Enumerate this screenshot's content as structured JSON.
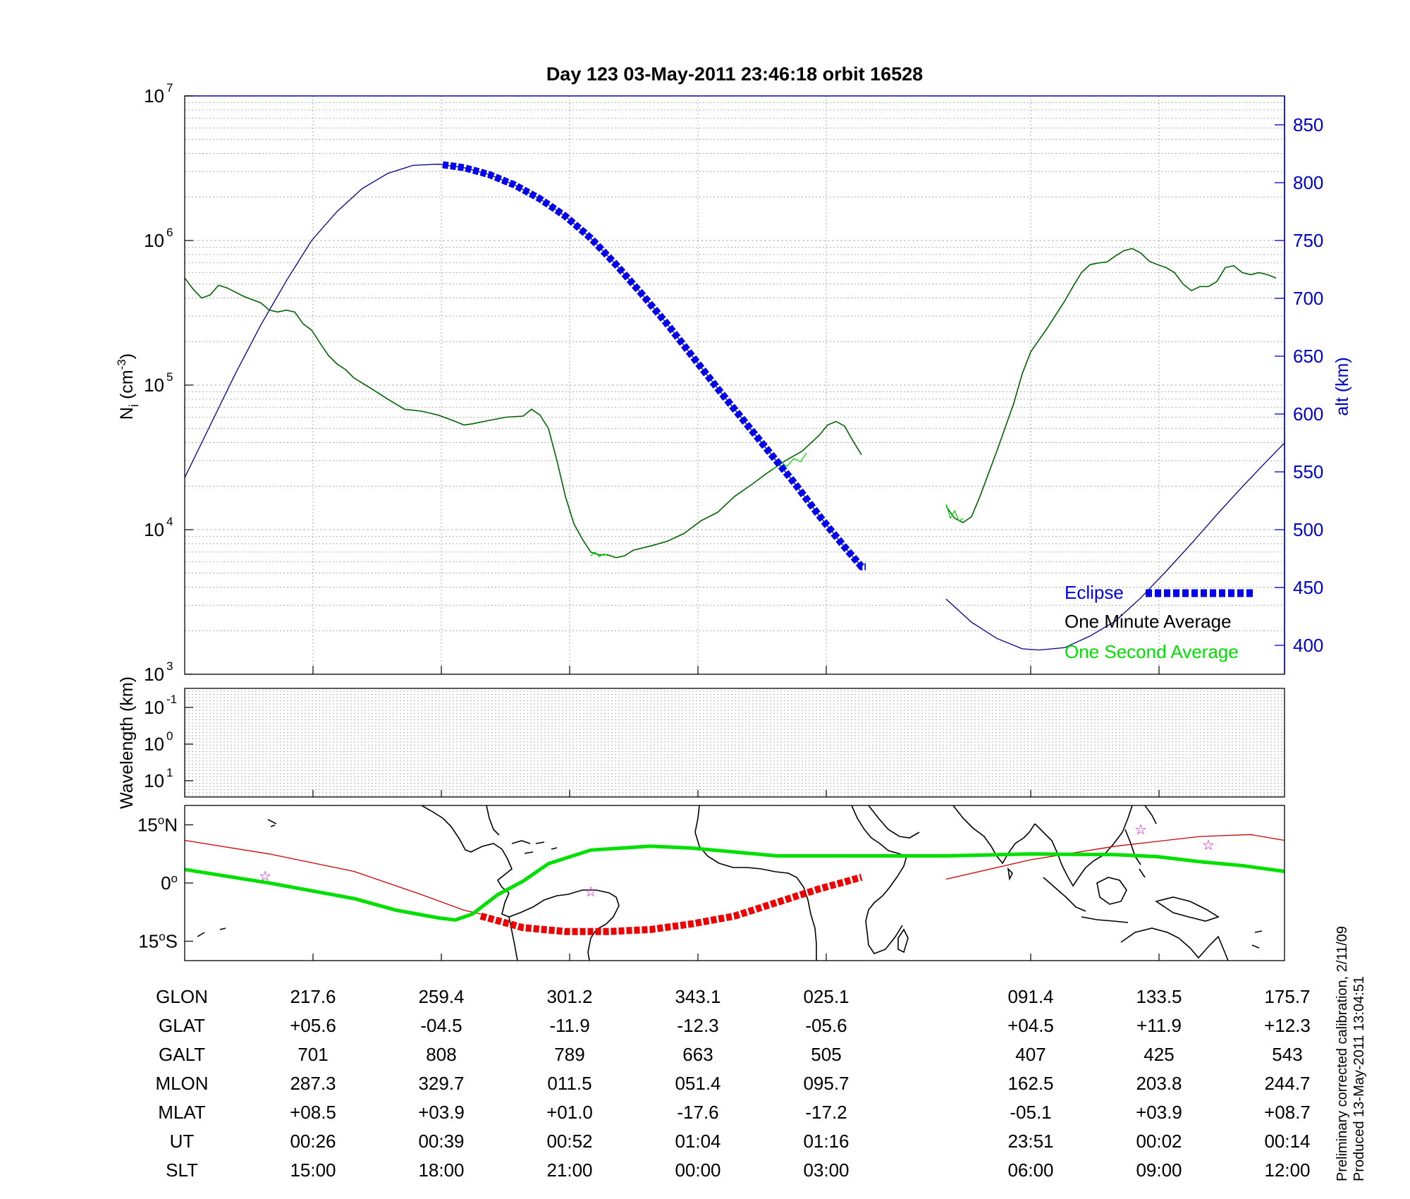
{
  "chart_data": [
    {
      "type": "line",
      "title": "Day 123  03-May-2011 23:46:18   orbit 16528",
      "ylabel": "N",
      "ylabel_sub": "i",
      "ylabel_units": "(cm",
      "ylabel_units_sup": "-3",
      "ylabel_units_close": ")",
      "y_scale": "log",
      "ylim": [
        1000,
        10000000
      ],
      "yticks": [
        {
          "base": "10",
          "exp": "3"
        },
        {
          "base": "10",
          "exp": "4"
        },
        {
          "base": "10",
          "exp": "5"
        },
        {
          "base": "10",
          "exp": "6"
        },
        {
          "base": "10",
          "exp": "7"
        }
      ],
      "y2label": "alt (km)",
      "y2lim": [
        375,
        875
      ],
      "y2ticks": [
        "400",
        "450",
        "500",
        "550",
        "600",
        "650",
        "700",
        "750",
        "800",
        "850"
      ],
      "grid": true,
      "legend_position": "bottom-right",
      "legend": {
        "eclipse": "Eclipse",
        "minute": "One Minute Average",
        "second": "One Second Average"
      },
      "colors": {
        "axes": "#000000",
        "altitude": "#00008b",
        "eclipse": "#0000ee",
        "minute": "#006400",
        "second": "#00e000",
        "grid": "#9a9a9a"
      },
      "series": [
        {
          "key": "ni_minute",
          "segments": [
            [
              [
                0,
                550000
              ],
              [
                10,
                460000
              ],
              [
                20,
                400000
              ],
              [
                30,
                420000
              ],
              [
                40,
                490000
              ],
              [
                50,
                470000
              ],
              [
                70,
                410000
              ],
              [
                90,
                370000
              ],
              [
                100,
                330000
              ],
              [
                110,
                320000
              ],
              [
                120,
                330000
              ],
              [
                130,
                320000
              ],
              [
                140,
                265000
              ],
              [
                150,
                240000
              ],
              [
                160,
                195000
              ],
              [
                170,
                160000
              ],
              [
                180,
                140000
              ],
              [
                190,
                128000
              ],
              [
                200,
                112000
              ],
              [
                220,
                95000
              ],
              [
                240,
                80000
              ],
              [
                260,
                68000
              ],
              [
                280,
                66000
              ],
              [
                300,
                62000
              ],
              [
                320,
                56000
              ],
              [
                330,
                53000
              ],
              [
                340,
                54000
              ],
              [
                360,
                57000
              ],
              [
                380,
                60000
              ],
              [
                400,
                61000
              ],
              [
                410,
                68000
              ],
              [
                420,
                62000
              ],
              [
                430,
                50000
              ],
              [
                440,
                30000
              ],
              [
                450,
                17000
              ],
              [
                460,
                11000
              ],
              [
                470,
                8600
              ],
              [
                480,
                7000
              ],
              [
                490,
                6700
              ],
              [
                500,
                6700
              ],
              [
                510,
                6400
              ],
              [
                520,
                6600
              ],
              [
                530,
                7200
              ],
              [
                550,
                7700
              ],
              [
                570,
                8300
              ],
              [
                590,
                9400
              ],
              [
                610,
                11500
              ],
              [
                630,
                13200
              ],
              [
                650,
                17000
              ],
              [
                670,
                20500
              ],
              [
                690,
                25000
              ],
              [
                710,
                30000
              ],
              [
                730,
                35000
              ],
              [
                750,
                45000
              ],
              [
                760,
                53000
              ],
              [
                770,
                56000
              ],
              [
                780,
                52000
              ],
              [
                790,
                41000
              ],
              [
                800,
                33000
              ]
            ],
            [
              [
                900,
                14500
              ],
              [
                910,
                12000
              ],
              [
                920,
                11200
              ],
              [
                930,
                12300
              ],
              [
                940,
                17000
              ],
              [
                960,
                35000
              ],
              [
                980,
                75000
              ],
              [
                990,
                120000
              ],
              [
                1000,
                170000
              ],
              [
                1020,
                250000
              ],
              [
                1040,
                380000
              ],
              [
                1050,
                480000
              ],
              [
                1060,
                600000
              ],
              [
                1070,
                680000
              ],
              [
                1080,
                700000
              ],
              [
                1090,
                710000
              ],
              [
                1100,
                780000
              ],
              [
                1110,
                850000
              ],
              [
                1120,
                880000
              ],
              [
                1130,
                820000
              ],
              [
                1140,
                720000
              ],
              [
                1150,
                680000
              ],
              [
                1160,
                650000
              ],
              [
                1170,
                600000
              ],
              [
                1180,
                500000
              ],
              [
                1190,
                450000
              ],
              [
                1200,
                480000
              ],
              [
                1210,
                480000
              ],
              [
                1220,
                520000
              ],
              [
                1230,
                650000
              ],
              [
                1240,
                670000
              ],
              [
                1250,
                600000
              ],
              [
                1260,
                580000
              ],
              [
                1270,
                600000
              ],
              [
                1280,
                580000
              ],
              [
                1290,
                550000
              ]
            ]
          ]
        },
        {
          "key": "ni_second",
          "segments": [
            [
              [
                480,
                6600
              ],
              [
                485,
                7000
              ],
              [
                490,
                6500
              ],
              [
                495,
                6800
              ],
              [
                500,
                6600
              ]
            ],
            [
              [
                695,
                26000
              ],
              [
                705,
                29000
              ],
              [
                712,
                27500
              ],
              [
                720,
                31000
              ],
              [
                728,
                29500
              ],
              [
                735,
                34000
              ]
            ],
            [
              [
                900,
                15000
              ],
              [
                905,
                12000
              ],
              [
                910,
                13500
              ],
              [
                915,
                11500
              ],
              [
                920,
                12000
              ]
            ]
          ]
        },
        {
          "key": "alt",
          "segments": [
            [
              [
                0,
                545
              ],
              [
                30,
                590
              ],
              [
                60,
                635
              ],
              [
                90,
                677
              ],
              [
                120,
                715
              ],
              [
                150,
                750
              ],
              [
                180,
                775
              ],
              [
                210,
                795
              ],
              [
                240,
                808
              ],
              [
                270,
                815
              ],
              [
                300,
                816
              ],
              [
                330,
                813
              ],
              [
                360,
                807
              ],
              [
                390,
                798
              ],
              [
                420,
                786
              ],
              [
                450,
                771
              ],
              [
                480,
                752
              ],
              [
                510,
                729
              ],
              [
                540,
                704
              ],
              [
                570,
                678
              ],
              [
                600,
                650
              ],
              [
                630,
                622
              ],
              [
                660,
                595
              ],
              [
                690,
                568
              ],
              [
                720,
                541
              ],
              [
                750,
                512
              ],
              [
                780,
                485
              ],
              [
                800,
                468
              ]
            ],
            [
              [
                900,
                440
              ],
              [
                930,
                420
              ],
              [
                960,
                406
              ],
              [
                990,
                397
              ],
              [
                1010,
                396
              ],
              [
                1040,
                398
              ],
              [
                1070,
                408
              ],
              [
                1100,
                421
              ],
              [
                1130,
                441
              ],
              [
                1160,
                464
              ],
              [
                1190,
                488
              ],
              [
                1220,
                513
              ],
              [
                1250,
                537
              ],
              [
                1280,
                560
              ],
              [
                1300,
                575
              ]
            ]
          ]
        },
        {
          "key": "eclipse",
          "x_range": [
            305,
            808
          ]
        }
      ]
    },
    {
      "type": "heatmap",
      "ylabel": "Wavelength (km)",
      "yticks": [
        {
          "base": "10",
          "exp": "-1"
        },
        {
          "base": "10",
          "exp": "0"
        },
        {
          "base": "10",
          "exp": "1"
        }
      ]
    },
    {
      "type": "line",
      "map": true,
      "y_ticks": [
        {
          "deg": "15",
          "sym": "o",
          "dir": "N"
        },
        {
          "deg": "0",
          "sym": "o",
          "dir": ""
        },
        {
          "deg": "15",
          "sym": "o",
          "dir": "S"
        }
      ],
      "ylim": [
        -20,
        20
      ],
      "colors": {
        "geographic_track": "#00e000",
        "magnetic_track": "#cc0000",
        "eclipse_track": "#ee0000",
        "stars": "#cc00cc",
        "coast": "#000000"
      },
      "star_marker": "☆",
      "series": [
        {
          "key": "geo_track",
          "points": [
            [
              0,
              3.5
            ],
            [
              100,
              0
            ],
            [
              200,
              -4
            ],
            [
              250,
              -7
            ],
            [
              300,
              -9
            ],
            [
              320,
              -9.5
            ],
            [
              340,
              -8
            ],
            [
              370,
              -3
            ],
            [
              400,
              0.5
            ],
            [
              430,
              5
            ],
            [
              480,
              8.5
            ],
            [
              550,
              9.5
            ],
            [
              600,
              9
            ],
            [
              650,
              8
            ],
            [
              700,
              7
            ],
            [
              800,
              7
            ],
            [
              900,
              7
            ],
            [
              1000,
              7.5
            ],
            [
              1100,
              7.3
            ],
            [
              1150,
              6.8
            ],
            [
              1200,
              5.5
            ],
            [
              1250,
              4.5
            ],
            [
              1300,
              3
            ]
          ]
        },
        {
          "key": "mag_track",
          "segments": [
            [
              [
                0,
                11
              ],
              [
                100,
                7.5
              ],
              [
                200,
                3
              ],
              [
                280,
                -3
              ],
              [
                330,
                -7
              ],
              [
                350,
                -8
              ]
            ],
            [
              [
                900,
                1
              ],
              [
                1000,
                6
              ],
              [
                1100,
                9.5
              ],
              [
                1200,
                12
              ],
              [
                1260,
                12.5
              ],
              [
                1300,
                11
              ]
            ]
          ]
        },
        {
          "key": "eclipse_track",
          "points": [
            [
              350,
              -8.5
            ],
            [
              400,
              -11.5
            ],
            [
              450,
              -12.5
            ],
            [
              500,
              -12.5
            ],
            [
              550,
              -12
            ],
            [
              600,
              -10.5
            ],
            [
              650,
              -8.5
            ],
            [
              700,
              -5
            ],
            [
              750,
              -1.5
            ],
            [
              800,
              1.5
            ]
          ]
        },
        {
          "key": "stars",
          "points": [
            [
              95,
              2
            ],
            [
              480,
              -2
            ],
            [
              1130,
              14
            ],
            [
              1210,
              10
            ]
          ]
        }
      ]
    }
  ],
  "table": {
    "rows": [
      {
        "label": "GLON",
        "values": [
          "217.6",
          "259.4",
          "301.2",
          "343.1",
          "025.1",
          "091.4",
          "133.5",
          "175.7"
        ]
      },
      {
        "label": "GLAT",
        "values": [
          "+05.6",
          "-04.5",
          "-11.9",
          "-12.3",
          "-05.6",
          "+04.5",
          "+11.9",
          "+12.3"
        ]
      },
      {
        "label": "GALT",
        "values": [
          "701",
          "808",
          "789",
          "663",
          "505",
          "407",
          "425",
          "543"
        ]
      },
      {
        "label": "MLON",
        "values": [
          "287.3",
          "329.7",
          "011.5",
          "051.4",
          "095.7",
          "162.5",
          "203.8",
          "244.7"
        ]
      },
      {
        "label": "MLAT",
        "values": [
          "+08.5",
          "+03.9",
          "+01.0",
          "-17.6",
          "-17.2",
          "-05.1",
          "+03.9",
          "+08.7"
        ]
      },
      {
        "label": "UT",
        "values": [
          "00:26",
          "00:39",
          "00:52",
          "01:04",
          "01:16",
          "23:51",
          "00:02",
          "00:14"
        ]
      },
      {
        "label": "SLT",
        "values": [
          "15:00",
          "18:00",
          "21:00",
          "00:00",
          "03:00",
          "06:00",
          "09:00",
          "12:00"
        ]
      }
    ]
  },
  "footer": {
    "line1": "Preliminary corrected calibration, 2/11/09",
    "line2": "Produced 13-May-2011 13:04:51"
  }
}
